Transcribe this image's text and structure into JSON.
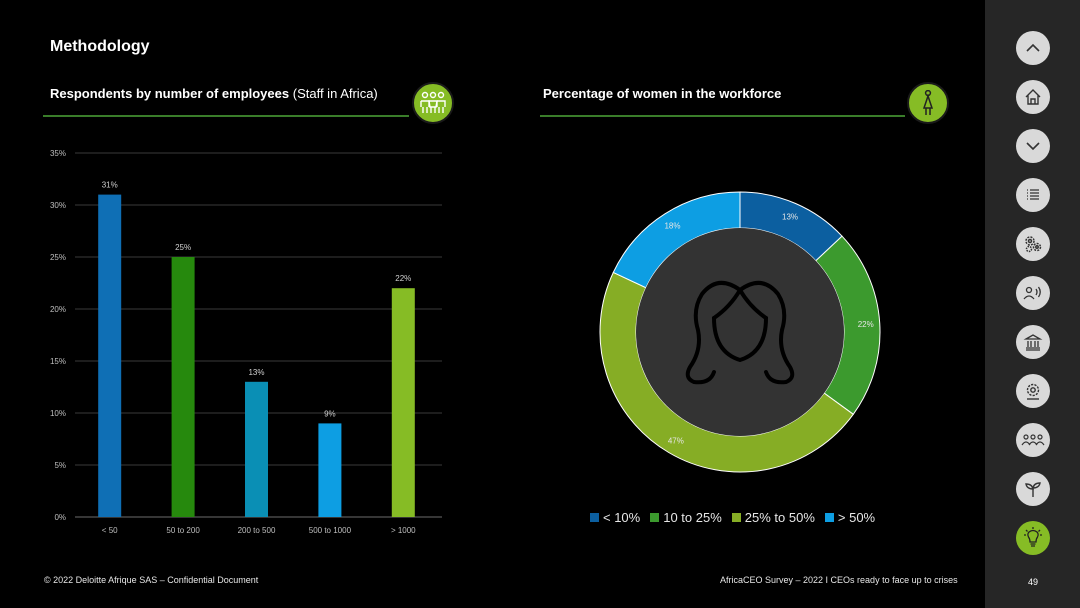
{
  "page": {
    "title": "Methodology",
    "footer_left": "© 2022 Deloitte Afrique SAS – Confidential Document",
    "footer_right": "AfricaCEO Survey – 2022 I CEOs ready to face up to crises",
    "page_number": "49"
  },
  "left_section": {
    "title_bold": "Respondents by number of employees",
    "title_light": "(Staff in Africa)",
    "icon": "people-group-icon"
  },
  "right_section": {
    "title": "Percentage of women in the workforce",
    "icon": "woman-icon",
    "center_icon": "woman-face-icon"
  },
  "chart_data": [
    {
      "type": "bar",
      "categories": [
        "< 50",
        "50 to 200",
        "200 to 500",
        "500 to 1000",
        "> 1000"
      ],
      "values": [
        31,
        25,
        13,
        9,
        22
      ],
      "data_labels": [
        "31%",
        "25%",
        "13%",
        "9%",
        "22%"
      ],
      "colors": [
        "#0f6fb5",
        "#26890d",
        "#0a8fb5",
        "#0d9ee3",
        "#86bc25"
      ],
      "ylim": [
        0,
        35
      ],
      "yticks": [
        0,
        5,
        10,
        15,
        20,
        25,
        30,
        35
      ],
      "ytick_labels": [
        "0%",
        "5%",
        "10%",
        "15%",
        "20%",
        "25%",
        "30%",
        "35%"
      ],
      "grid": true,
      "title": "",
      "xlabel": "",
      "ylabel": ""
    },
    {
      "type": "pie",
      "donut": true,
      "categories": [
        "< 10%",
        "10 to 25%",
        "25% to 50%",
        "> 50%"
      ],
      "values": [
        13,
        22,
        47,
        18
      ],
      "data_labels": [
        "13%",
        "22%",
        "47%",
        "18%"
      ],
      "colors": [
        "#0c5fa0",
        "#3c9a2e",
        "#86ad25",
        "#0d9ee3"
      ],
      "legend_position": "bottom"
    }
  ],
  "sidebar": {
    "items": [
      {
        "name": "chevron-up-icon"
      },
      {
        "name": "home-icon"
      },
      {
        "name": "chevron-down-icon"
      },
      {
        "name": "list-icon"
      },
      {
        "name": "gears-icon"
      },
      {
        "name": "speaking-person-icon"
      },
      {
        "name": "institution-icon"
      },
      {
        "name": "settings-icon"
      },
      {
        "name": "people-icon"
      },
      {
        "name": "plant-icon"
      },
      {
        "name": "lightbulb-icon",
        "active": true
      }
    ]
  }
}
